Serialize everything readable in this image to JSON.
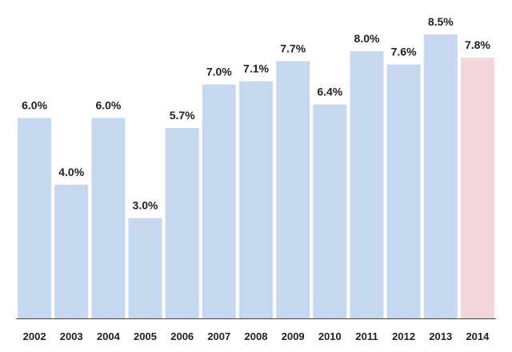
{
  "chart_data": {
    "type": "bar",
    "title": "",
    "xlabel": "",
    "ylabel": "",
    "categories": [
      "2002",
      "2003",
      "2004",
      "2005",
      "2006",
      "2007",
      "2008",
      "2009",
      "2010",
      "2011",
      "2012",
      "2013",
      "2014"
    ],
    "values": [
      6.0,
      4.0,
      6.0,
      3.0,
      5.7,
      7.0,
      7.1,
      7.7,
      6.4,
      8.0,
      7.6,
      8.5,
      7.8
    ],
    "value_labels": [
      "6.0%",
      "4.0%",
      "6.0%",
      "3.0%",
      "5.7%",
      "7.0%",
      "7.1%",
      "7.7%",
      "6.4%",
      "8.0%",
      "7.6%",
      "8.5%",
      "7.8%"
    ],
    "ylim": [
      0,
      8.5
    ],
    "grid": false,
    "legend": "none",
    "colors": {
      "bar": "#c6d8f0",
      "highlight_bar": "#f2d6da",
      "axis": "#444444",
      "text": "#222222"
    },
    "highlight_index": 12
  }
}
